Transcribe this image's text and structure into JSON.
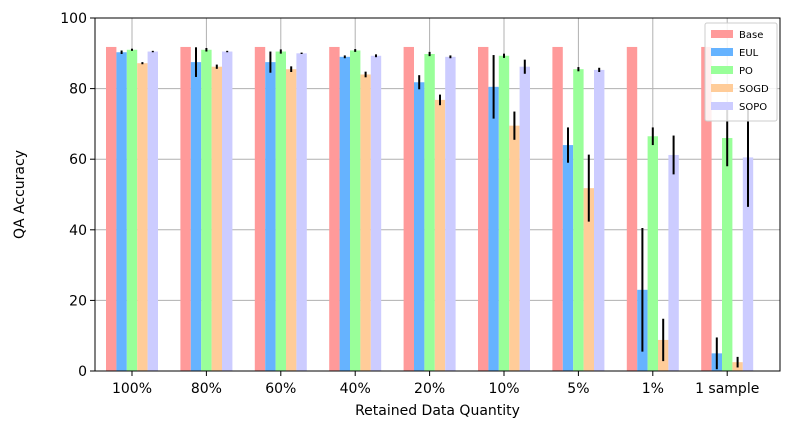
{
  "chart_data": {
    "type": "bar",
    "title": "",
    "xlabel": "Retained Data Quantity",
    "ylabel": "QA Accuracy",
    "ylim": [
      0,
      100
    ],
    "yticks": [
      0,
      20,
      40,
      60,
      80,
      100
    ],
    "grid": "y",
    "legend_position": "top-right",
    "categories": [
      "100%",
      "80%",
      "60%",
      "40%",
      "20%",
      "10%",
      "5%",
      "1%",
      "1 sample"
    ],
    "series": [
      {
        "name": "Base",
        "color": "#ff9a9a",
        "values": [
          91.8,
          91.8,
          91.8,
          91.8,
          91.8,
          91.8,
          91.8,
          91.8,
          91.8
        ],
        "errors": [
          0,
          0,
          0,
          0,
          0,
          0,
          0,
          0,
          0
        ]
      },
      {
        "name": "EUL",
        "color": "#66b3ff",
        "values": [
          90.3,
          87.5,
          87.5,
          89.0,
          81.8,
          80.5,
          64.0,
          23.0,
          5.0
        ],
        "errors": [
          0.5,
          4.2,
          3.0,
          0.4,
          2.0,
          9.0,
          5.0,
          17.5,
          4.5
        ]
      },
      {
        "name": "PO",
        "color": "#99ff99",
        "values": [
          91.0,
          91.0,
          90.5,
          90.8,
          89.8,
          89.3,
          85.5,
          66.5,
          66.0
        ],
        "errors": [
          0.3,
          0.5,
          0.6,
          0.4,
          0.6,
          0.6,
          0.6,
          2.5,
          8.0
        ]
      },
      {
        "name": "SOGD",
        "color": "#ffcc99",
        "values": [
          87.2,
          86.2,
          85.5,
          84.0,
          76.8,
          69.5,
          51.8,
          8.8,
          2.5
        ],
        "errors": [
          0.3,
          0.6,
          0.8,
          0.8,
          1.5,
          4.0,
          9.5,
          6.0,
          1.5
        ]
      },
      {
        "name": "SOPO",
        "color": "#ccccff",
        "values": [
          90.5,
          90.5,
          90.0,
          89.3,
          89.0,
          86.2,
          85.3,
          61.2,
          60.5
        ],
        "errors": [
          0.2,
          0.2,
          0.2,
          0.4,
          0.4,
          2.0,
          0.6,
          5.5,
          14.0
        ]
      }
    ]
  }
}
